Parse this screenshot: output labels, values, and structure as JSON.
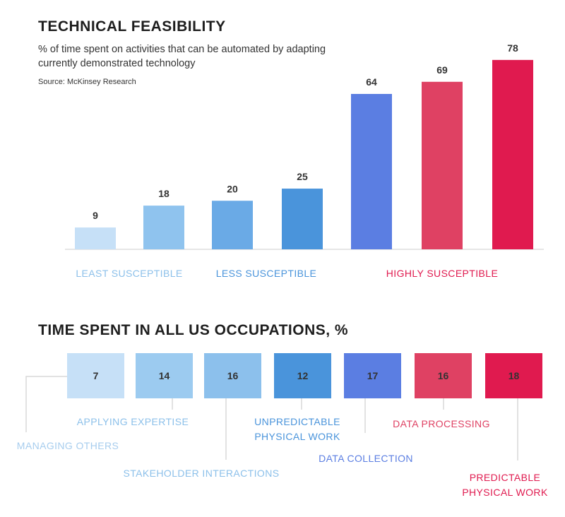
{
  "header": {
    "title": "TECHNICAL FEASIBILITY",
    "subtitle": "% of time spent on activities that can be automated by adapting currently demonstrated technology",
    "source": "Source: McKinsey Research"
  },
  "chart_data": [
    {
      "type": "bar",
      "title": "TECHNICAL FEASIBILITY",
      "subtitle": "% of time spent on activities that can be automated by adapting currently demonstrated technology",
      "values": [
        9,
        18,
        20,
        25,
        64,
        69,
        78
      ],
      "colors": [
        "#c6e0f7",
        "#8fc3ee",
        "#6aaae6",
        "#4a94db",
        "#5b7ee2",
        "#df4163",
        "#e01a4f"
      ],
      "groups": [
        {
          "label": "LEAST SUSCEPTIBLE",
          "color": "#8cc0ea"
        },
        {
          "label": "LESS SUSCEPTIBLE",
          "color": "#4a94db"
        },
        {
          "label": "HIGHLY SUSCEPTIBLE",
          "color": "#e01a4f"
        }
      ],
      "ylim": [
        0,
        80
      ],
      "grid": false
    },
    {
      "type": "table",
      "title": "TIME SPENT IN ALL US OCCUPATIONS, %",
      "cells": [
        {
          "value": 7,
          "label": "MANAGING OTHERS",
          "color": "#c6e0f7",
          "label_color": "#a7cdee"
        },
        {
          "value": 14,
          "label": "APPLYING EXPERTISE",
          "color": "#9ccbf0",
          "label_color": "#8cc0ea"
        },
        {
          "value": 16,
          "label": "STAKEHOLDER INTERACTIONS",
          "color": "#8cc0ec",
          "label_color": "#8cc0ea"
        },
        {
          "value": 12,
          "label": "UNPREDICTABLE PHYSICAL WORK",
          "color": "#4a94db",
          "label_color": "#4a94db"
        },
        {
          "value": 17,
          "label": "DATA COLLECTION",
          "color": "#5b7ee2",
          "label_color": "#5b7ee2"
        },
        {
          "value": 16,
          "label": "DATA PROCESSING",
          "color": "#df4163",
          "label_color": "#df4163"
        },
        {
          "value": 18,
          "label": "PREDICTABLE PHYSICAL WORK",
          "color": "#e01a4f",
          "label_color": "#e01a4f"
        }
      ]
    }
  ]
}
